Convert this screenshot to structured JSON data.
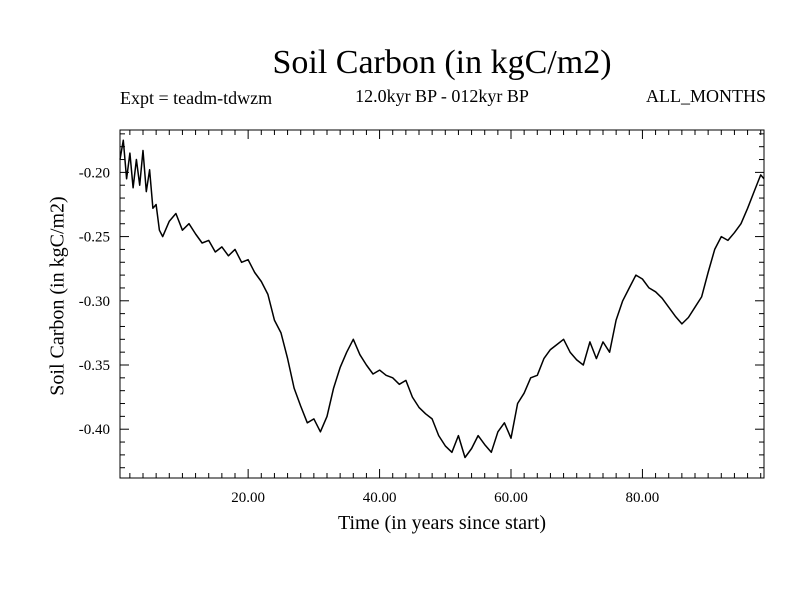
{
  "chart_data": {
    "type": "line",
    "title": "Soil Carbon (in kgC/m2)",
    "subtitle_left": "Expt = teadm-tdwzm",
    "subtitle_center": "12.0kyr BP - 012kyr BP",
    "subtitle_right": "ALL_MONTHS",
    "xlabel": "Time (in years since start)",
    "ylabel": "Soil Carbon (in kgC/m2)",
    "xlim": [
      0.5,
      98.5
    ],
    "ylim": [
      -0.438,
      -0.167
    ],
    "x_ticks": [
      20,
      40,
      60,
      80
    ],
    "x_tick_labels": [
      "20.00",
      "40.00",
      "60.00",
      "80.00"
    ],
    "y_ticks": [
      -0.2,
      -0.25,
      -0.3,
      -0.35,
      -0.4
    ],
    "y_tick_labels": [
      "-0.20",
      "-0.25",
      "-0.30",
      "-0.35",
      "-0.40"
    ],
    "grid": false,
    "series": [
      {
        "color": "#000000",
        "x": [
          0.5,
          1,
          1.5,
          2,
          2.5,
          3,
          3.5,
          4,
          4.5,
          5,
          5.5,
          6,
          6.5,
          7,
          8,
          9,
          10,
          11,
          12,
          13,
          14,
          15,
          16,
          17,
          18,
          19,
          20,
          21,
          22,
          23,
          24,
          25,
          26,
          27,
          28,
          29,
          30,
          31,
          32,
          33,
          34,
          35,
          36,
          37,
          38,
          39,
          40,
          41,
          42,
          43,
          44,
          45,
          46,
          47,
          48,
          49,
          50,
          51,
          52,
          53,
          54,
          55,
          56,
          57,
          58,
          59,
          60,
          61,
          62,
          63,
          64,
          65,
          66,
          67,
          68,
          69,
          70,
          71,
          72,
          73,
          74,
          75,
          76,
          77,
          78,
          79,
          80,
          81,
          82,
          83,
          84,
          85,
          86,
          87,
          88,
          89,
          90,
          91,
          92,
          93,
          94,
          95,
          96,
          97,
          98,
          98.5
        ],
        "values": [
          -0.19,
          -0.175,
          -0.205,
          -0.185,
          -0.212,
          -0.19,
          -0.21,
          -0.183,
          -0.215,
          -0.198,
          -0.228,
          -0.225,
          -0.245,
          -0.25,
          -0.238,
          -0.232,
          -0.245,
          -0.24,
          -0.248,
          -0.255,
          -0.253,
          -0.262,
          -0.258,
          -0.265,
          -0.26,
          -0.27,
          -0.268,
          -0.278,
          -0.285,
          -0.295,
          -0.315,
          -0.325,
          -0.345,
          -0.368,
          -0.382,
          -0.395,
          -0.392,
          -0.402,
          -0.39,
          -0.368,
          -0.352,
          -0.34,
          -0.33,
          -0.342,
          -0.35,
          -0.357,
          -0.354,
          -0.358,
          -0.36,
          -0.365,
          -0.362,
          -0.375,
          -0.383,
          -0.388,
          -0.392,
          -0.405,
          -0.413,
          -0.418,
          -0.405,
          -0.422,
          -0.415,
          -0.405,
          -0.412,
          -0.418,
          -0.402,
          -0.395,
          -0.407,
          -0.38,
          -0.372,
          -0.36,
          -0.358,
          -0.345,
          -0.338,
          -0.334,
          -0.33,
          -0.34,
          -0.346,
          -0.35,
          -0.332,
          -0.345,
          -0.332,
          -0.34,
          -0.315,
          -0.3,
          -0.29,
          -0.28,
          -0.283,
          -0.29,
          -0.293,
          -0.298,
          -0.305,
          -0.312,
          -0.318,
          -0.313,
          -0.305,
          -0.297,
          -0.278,
          -0.26,
          -0.25,
          -0.253,
          -0.247,
          -0.24,
          -0.228,
          -0.215,
          -0.202,
          -0.205
        ]
      }
    ]
  }
}
